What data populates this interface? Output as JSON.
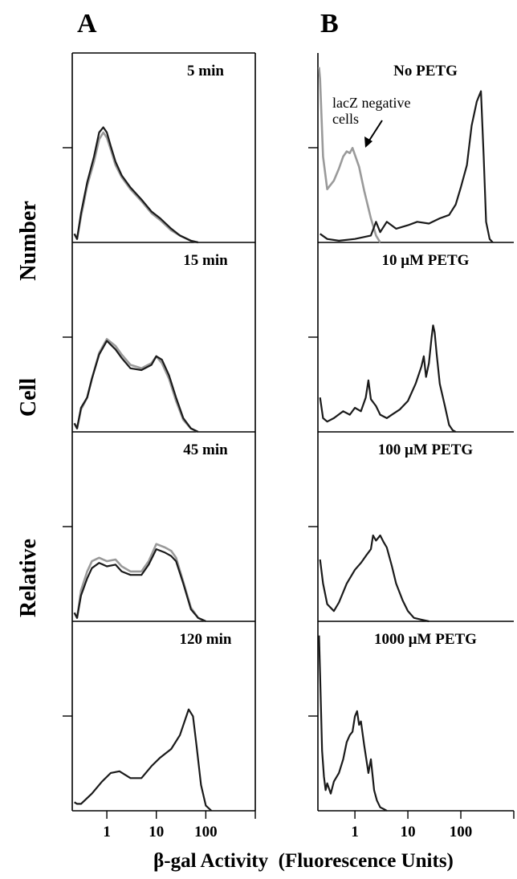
{
  "figure": {
    "panel_letters": [
      "A",
      "B"
    ],
    "y_axis_label_words": [
      "Relative",
      "Cell",
      "Number"
    ],
    "x_axis_label": "β-gal Activity  (Fluorescence Units)",
    "x_tick_labels": [
      "1",
      "10",
      "100"
    ]
  },
  "colors": {
    "primary_trace": "#1a1a1a",
    "overlay_trace": "#9a9a9a"
  },
  "chart_data": [
    {
      "type": "line",
      "panel": "A",
      "title": "5 min",
      "xscale": "log",
      "xlim": [
        0.2,
        1000
      ],
      "ylim": [
        0,
        1
      ],
      "series": [
        {
          "color": "#1a1a1a",
          "x": [
            0.22,
            0.25,
            0.3,
            0.4,
            0.55,
            0.7,
            0.85,
            1.0,
            1.2,
            1.5,
            2,
            3,
            5,
            8,
            12,
            20,
            30,
            50,
            70
          ],
          "y": [
            0.05,
            0.02,
            0.17,
            0.35,
            0.5,
            0.64,
            0.67,
            0.64,
            0.56,
            0.47,
            0.39,
            0.32,
            0.25,
            0.18,
            0.14,
            0.08,
            0.04,
            0.01,
            0
          ]
        },
        {
          "color": "#9a9a9a",
          "x": [
            0.22,
            0.25,
            0.3,
            0.4,
            0.55,
            0.7,
            0.85,
            1.0,
            1.2,
            1.5,
            2,
            3,
            5,
            8,
            12,
            20,
            30,
            50,
            70
          ],
          "y": [
            0.05,
            0.02,
            0.15,
            0.33,
            0.47,
            0.6,
            0.64,
            0.61,
            0.54,
            0.45,
            0.38,
            0.31,
            0.24,
            0.17,
            0.13,
            0.07,
            0.04,
            0.01,
            0
          ]
        }
      ]
    },
    {
      "type": "line",
      "panel": "A",
      "title": "15 min",
      "xscale": "log",
      "xlim": [
        0.2,
        1000
      ],
      "ylim": [
        0,
        1
      ],
      "series": [
        {
          "color": "#1a1a1a",
          "x": [
            0.22,
            0.25,
            0.3,
            0.4,
            0.5,
            0.7,
            1,
            1.5,
            2,
            3,
            5,
            8,
            10,
            13,
            18,
            25,
            35,
            50,
            70
          ],
          "y": [
            0.05,
            0.02,
            0.14,
            0.2,
            0.31,
            0.45,
            0.53,
            0.48,
            0.43,
            0.37,
            0.36,
            0.39,
            0.44,
            0.42,
            0.33,
            0.2,
            0.08,
            0.02,
            0
          ]
        },
        {
          "color": "#9a9a9a",
          "x": [
            0.22,
            0.25,
            0.3,
            0.4,
            0.5,
            0.7,
            1,
            1.5,
            2,
            3,
            5,
            8,
            10,
            13,
            18,
            25,
            35,
            50,
            70
          ],
          "y": [
            0.05,
            0.02,
            0.13,
            0.2,
            0.31,
            0.46,
            0.54,
            0.5,
            0.45,
            0.39,
            0.37,
            0.4,
            0.44,
            0.4,
            0.31,
            0.18,
            0.07,
            0.02,
            0
          ]
        }
      ]
    },
    {
      "type": "line",
      "panel": "A",
      "title": "45 min",
      "xscale": "log",
      "xlim": [
        0.2,
        1000
      ],
      "ylim": [
        0,
        1
      ],
      "series": [
        {
          "color": "#1a1a1a",
          "x": [
            0.22,
            0.25,
            0.3,
            0.4,
            0.5,
            0.7,
            1,
            1.5,
            2,
            3,
            5,
            7,
            10,
            15,
            20,
            25,
            35,
            50,
            70,
            100
          ],
          "y": [
            0.05,
            0.02,
            0.15,
            0.25,
            0.31,
            0.34,
            0.32,
            0.33,
            0.29,
            0.27,
            0.27,
            0.33,
            0.42,
            0.4,
            0.38,
            0.35,
            0.22,
            0.07,
            0.02,
            0
          ]
        },
        {
          "color": "#9a9a9a",
          "x": [
            0.22,
            0.25,
            0.3,
            0.4,
            0.5,
            0.7,
            1,
            1.5,
            2,
            3,
            5,
            7,
            10,
            15,
            20,
            25,
            35,
            50,
            70,
            100
          ],
          "y": [
            0.05,
            0.02,
            0.18,
            0.29,
            0.35,
            0.37,
            0.35,
            0.36,
            0.32,
            0.29,
            0.29,
            0.35,
            0.45,
            0.43,
            0.41,
            0.37,
            0.23,
            0.08,
            0.02,
            0
          ]
        }
      ]
    },
    {
      "type": "line",
      "panel": "A",
      "title": "120 min",
      "xscale": "log",
      "xlim": [
        0.2,
        1000
      ],
      "ylim": [
        0,
        1
      ],
      "series": [
        {
          "color": "#1a1a1a",
          "x": [
            0.22,
            0.25,
            0.3,
            0.5,
            0.8,
            1.2,
            1.8,
            3,
            5,
            8,
            12,
            20,
            30,
            45,
            55,
            65,
            80,
            100,
            130
          ],
          "y": [
            0.05,
            0.04,
            0.04,
            0.1,
            0.17,
            0.22,
            0.23,
            0.19,
            0.19,
            0.26,
            0.31,
            0.36,
            0.44,
            0.59,
            0.55,
            0.38,
            0.15,
            0.03,
            0
          ]
        }
      ]
    },
    {
      "type": "line",
      "panel": "B",
      "title": "No PETG",
      "xscale": "log",
      "xlim": [
        0.2,
        1000
      ],
      "ylim": [
        0,
        1
      ],
      "annotations": [
        "lacZ negative cells"
      ],
      "series": [
        {
          "color": "#1a1a1a",
          "x": [
            0.22,
            0.3,
            0.5,
            1,
            2,
            2.5,
            3,
            4,
            6,
            10,
            15,
            25,
            40,
            60,
            80,
            100,
            130,
            160,
            200,
            240,
            270,
            300,
            350,
            400
          ],
          "y": [
            0.05,
            0.02,
            0.01,
            0.02,
            0.04,
            0.12,
            0.06,
            0.12,
            0.08,
            0.1,
            0.12,
            0.11,
            0.14,
            0.16,
            0.22,
            0.32,
            0.45,
            0.68,
            0.82,
            0.88,
            0.5,
            0.12,
            0.02,
            0
          ]
        },
        {
          "color": "#9a9a9a",
          "x": [
            0.21,
            0.22,
            0.25,
            0.3,
            0.4,
            0.5,
            0.6,
            0.7,
            0.8,
            0.9,
            1.0,
            1.2,
            1.5,
            2,
            2.5,
            3
          ],
          "y": [
            1.02,
            0.95,
            0.5,
            0.31,
            0.36,
            0.43,
            0.5,
            0.53,
            0.52,
            0.55,
            0.51,
            0.44,
            0.3,
            0.14,
            0.04,
            0
          ]
        }
      ]
    },
    {
      "type": "line",
      "panel": "B",
      "title": "10 μM PETG",
      "xscale": "log",
      "xlim": [
        0.2,
        1000
      ],
      "ylim": [
        0,
        1
      ],
      "series": [
        {
          "color": "#1a1a1a",
          "x": [
            0.22,
            0.25,
            0.3,
            0.4,
            0.6,
            0.8,
            1,
            1.3,
            1.6,
            1.8,
            2,
            2.5,
            3,
            4,
            5,
            7,
            10,
            14,
            18,
            20,
            22,
            25,
            28,
            30,
            32,
            35,
            40,
            50,
            60,
            70,
            80
          ],
          "y": [
            0.2,
            0.08,
            0.06,
            0.08,
            0.12,
            0.1,
            0.14,
            0.12,
            0.2,
            0.3,
            0.19,
            0.15,
            0.1,
            0.08,
            0.1,
            0.13,
            0.18,
            0.28,
            0.38,
            0.44,
            0.32,
            0.4,
            0.55,
            0.62,
            0.58,
            0.45,
            0.28,
            0.15,
            0.04,
            0.01,
            0
          ]
        }
      ]
    },
    {
      "type": "line",
      "panel": "B",
      "title": "100 μM PETG",
      "xscale": "log",
      "xlim": [
        0.2,
        1000
      ],
      "ylim": [
        0,
        1
      ],
      "series": [
        {
          "color": "#1a1a1a",
          "x": [
            0.22,
            0.25,
            0.3,
            0.4,
            0.5,
            0.7,
            1,
            1.3,
            1.6,
            2,
            2.2,
            2.5,
            3,
            3.5,
            4,
            5,
            6,
            8,
            10,
            13,
            18,
            25
          ],
          "y": [
            0.36,
            0.22,
            0.1,
            0.06,
            0.11,
            0.22,
            0.3,
            0.34,
            0.38,
            0.42,
            0.5,
            0.47,
            0.5,
            0.46,
            0.43,
            0.32,
            0.22,
            0.12,
            0.06,
            0.02,
            0.01,
            0
          ]
        }
      ]
    },
    {
      "type": "line",
      "panel": "B",
      "title": "1000 μM PETG",
      "xscale": "log",
      "xlim": [
        0.2,
        1000
      ],
      "ylim": [
        0,
        1
      ],
      "series": [
        {
          "color": "#1a1a1a",
          "x": [
            0.21,
            0.22,
            0.24,
            0.26,
            0.28,
            0.3,
            0.35,
            0.4,
            0.5,
            0.6,
            0.7,
            0.8,
            0.9,
            1.0,
            1.1,
            1.2,
            1.3,
            1.5,
            1.8,
            2,
            2.3,
            2.6,
            3,
            3.5,
            4
          ],
          "y": [
            1.02,
            0.8,
            0.35,
            0.2,
            0.12,
            0.16,
            0.1,
            0.17,
            0.22,
            0.3,
            0.4,
            0.44,
            0.46,
            0.55,
            0.58,
            0.5,
            0.52,
            0.38,
            0.22,
            0.3,
            0.12,
            0.06,
            0.02,
            0.01,
            0
          ]
        }
      ]
    }
  ]
}
